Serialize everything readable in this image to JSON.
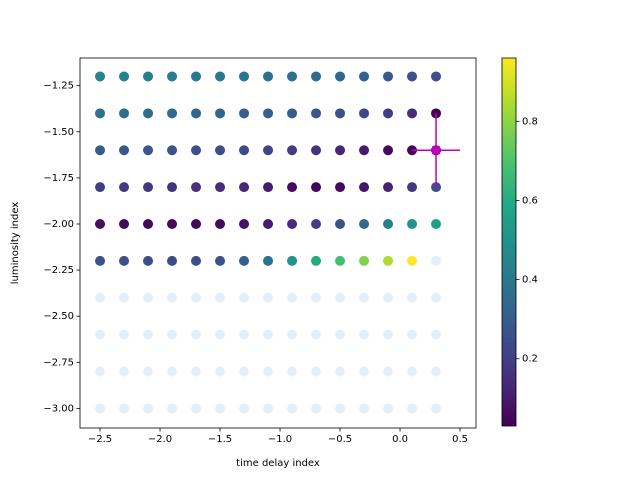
{
  "chart_data": {
    "type": "scatter",
    "xlabel": "time delay index",
    "ylabel": "luminosity index",
    "x": [
      -2.5,
      -2.3,
      -2.1,
      -1.9,
      -1.7,
      -1.5,
      -1.3,
      -1.1,
      -0.9,
      -0.7,
      -0.5,
      -0.3,
      -0.1,
      0.1,
      0.3
    ],
    "y": [
      -1.2,
      -1.4,
      -1.6,
      -1.8,
      -2.0,
      -2.2,
      -2.4,
      -2.6,
      -2.8,
      -3.0
    ],
    "values": [
      [
        0.45,
        0.44,
        0.43,
        0.42,
        0.41,
        0.4,
        0.39,
        0.38,
        0.37,
        0.35,
        0.33,
        0.31,
        0.29,
        0.27,
        0.25
      ],
      [
        0.38,
        0.37,
        0.36,
        0.35,
        0.34,
        0.33,
        0.32,
        0.31,
        0.3,
        0.28,
        0.26,
        0.23,
        0.2,
        0.15,
        0.03
      ],
      [
        0.3,
        0.29,
        0.28,
        0.27,
        0.26,
        0.25,
        0.24,
        0.22,
        0.2,
        0.17,
        0.13,
        0.1,
        0.05,
        0.04,
        0.05
      ],
      [
        0.2,
        0.19,
        0.18,
        0.17,
        0.16,
        0.15,
        0.13,
        0.1,
        0.06,
        0.04,
        0.05,
        0.08,
        0.12,
        0.18,
        0.25
      ],
      [
        0.07,
        0.06,
        0.05,
        0.05,
        0.05,
        0.06,
        0.08,
        0.1,
        0.14,
        0.2,
        0.27,
        0.35,
        0.42,
        0.5,
        0.55
      ],
      [
        0.27,
        0.26,
        0.25,
        0.24,
        0.25,
        0.27,
        0.31,
        0.38,
        0.5,
        0.6,
        0.68,
        0.78,
        0.85,
        0.96,
        null
      ],
      [
        null,
        null,
        null,
        null,
        null,
        null,
        null,
        null,
        null,
        null,
        null,
        null,
        null,
        null,
        null
      ],
      [
        null,
        null,
        null,
        null,
        null,
        null,
        null,
        null,
        null,
        null,
        null,
        null,
        null,
        null,
        null
      ],
      [
        null,
        null,
        null,
        null,
        null,
        null,
        null,
        null,
        null,
        null,
        null,
        null,
        null,
        null,
        null
      ],
      [
        null,
        null,
        null,
        null,
        null,
        null,
        null,
        null,
        null,
        null,
        null,
        null,
        null,
        null,
        null
      ]
    ],
    "colormap": "viridis",
    "clim": [
      0.03,
      0.96
    ],
    "cticks": [
      0.2,
      0.4,
      0.6,
      0.8
    ],
    "empty_color": "#1f77b4",
    "marker": {
      "x": 0.3,
      "y": -1.6,
      "xerr": 0.2,
      "yerr": 0.2,
      "color": "#bf00bf"
    },
    "xlim": [
      -2.667,
      0.633
    ],
    "xticks": [
      {
        "value": -2.5,
        "label": "−2.5"
      },
      {
        "value": -2.0,
        "label": "−2.0"
      },
      {
        "value": -1.5,
        "label": "−1.5"
      },
      {
        "value": -1.0,
        "label": "−1.0"
      },
      {
        "value": -0.5,
        "label": "−0.5"
      },
      {
        "value": 0,
        "label": "0.0"
      },
      0.5
    ],
    "ylim": [
      -3.106,
      -1.1
    ],
    "yticks": [
      {
        "value": -1.25,
        "label": "−1.25"
      },
      {
        "value": -1.5,
        "label": "−1.50"
      },
      {
        "value": -1.75,
        "label": "−1.75"
      },
      {
        "value": -2.0,
        "label": "−2.00"
      },
      {
        "value": -2.25,
        "label": "−2.25"
      },
      {
        "value": -2.5,
        "label": "−2.50"
      },
      {
        "value": -2.75,
        "label": "−2.75"
      },
      {
        "value": -3.0,
        "label": "−3.00"
      }
    ]
  }
}
